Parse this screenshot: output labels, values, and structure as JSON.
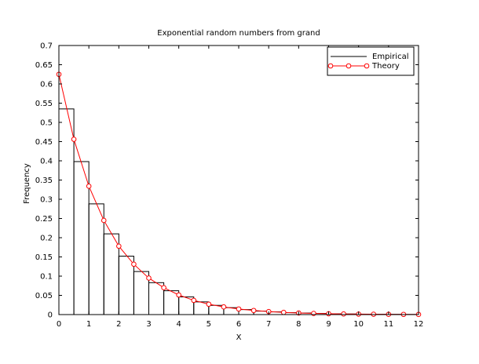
{
  "chart_data": {
    "type": "bar",
    "title": "Exponential random numbers from grand",
    "xlabel": "X",
    "ylabel": "Frequency",
    "xlim": [
      0,
      12
    ],
    "ylim": [
      0,
      0.7
    ],
    "x_ticks": [
      "0",
      "1",
      "2",
      "3",
      "4",
      "5",
      "6",
      "7",
      "8",
      "9",
      "10",
      "11",
      "12"
    ],
    "y_ticks": [
      "0",
      "0.05",
      "0.1",
      "0.15",
      "0.2",
      "0.25",
      "0.3",
      "0.35",
      "0.4",
      "0.45",
      "0.5",
      "0.55",
      "0.6",
      "0.65",
      "0.7"
    ],
    "grid": false,
    "legend_position": "top-right",
    "series": [
      {
        "name": "Empirical",
        "type": "histogram",
        "color": "#000000",
        "bin_width": 0.5,
        "bin_starts": [
          0,
          0.5,
          1,
          1.5,
          2,
          2.5,
          3,
          3.5,
          4,
          4.5,
          5,
          5.5,
          6,
          6.5,
          7,
          7.5,
          8,
          8.5,
          9,
          9.5,
          10,
          10.5,
          11,
          11.5
        ],
        "values": [
          0.535,
          0.398,
          0.288,
          0.21,
          0.152,
          0.112,
          0.083,
          0.062,
          0.046,
          0.033,
          0.024,
          0.018,
          0.013,
          0.009,
          0.007,
          0.005,
          0.004,
          0.003,
          0.002,
          0.0015,
          0.001,
          0.0008,
          0.0006,
          0.0004
        ]
      },
      {
        "name": "Theory",
        "type": "line",
        "color": "#ff0000",
        "marker": "circle",
        "x": [
          0,
          0.5,
          1,
          1.5,
          2,
          2.5,
          3,
          3.5,
          4,
          4.5,
          5,
          5.5,
          6,
          6.5,
          7,
          7.5,
          8,
          8.5,
          9,
          9.5,
          10,
          10.5,
          11,
          11.5,
          12
        ],
        "y": [
          0.625,
          0.456,
          0.334,
          0.245,
          0.178,
          0.131,
          0.095,
          0.07,
          0.051,
          0.037,
          0.027,
          0.02,
          0.0145,
          0.0107,
          0.0078,
          0.0057,
          0.0042,
          0.003,
          0.0022,
          0.0016,
          0.0012,
          0.0009,
          0.0006,
          0.0005,
          0.0003
        ]
      }
    ]
  }
}
